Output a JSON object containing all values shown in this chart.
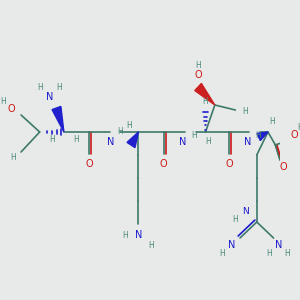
{
  "bg_color": "#e8eaea",
  "C": "#3d7a6a",
  "N": "#1a1acc",
  "O": "#cc1a1a",
  "H": "#4a8a7a",
  "BC": "#3d7a6a",
  "BW": 1.2,
  "wedge_blue": "#2020cc",
  "wedge_red": "#cc2020",
  "figsize": [
    3.0,
    3.0
  ],
  "dpi": 100
}
